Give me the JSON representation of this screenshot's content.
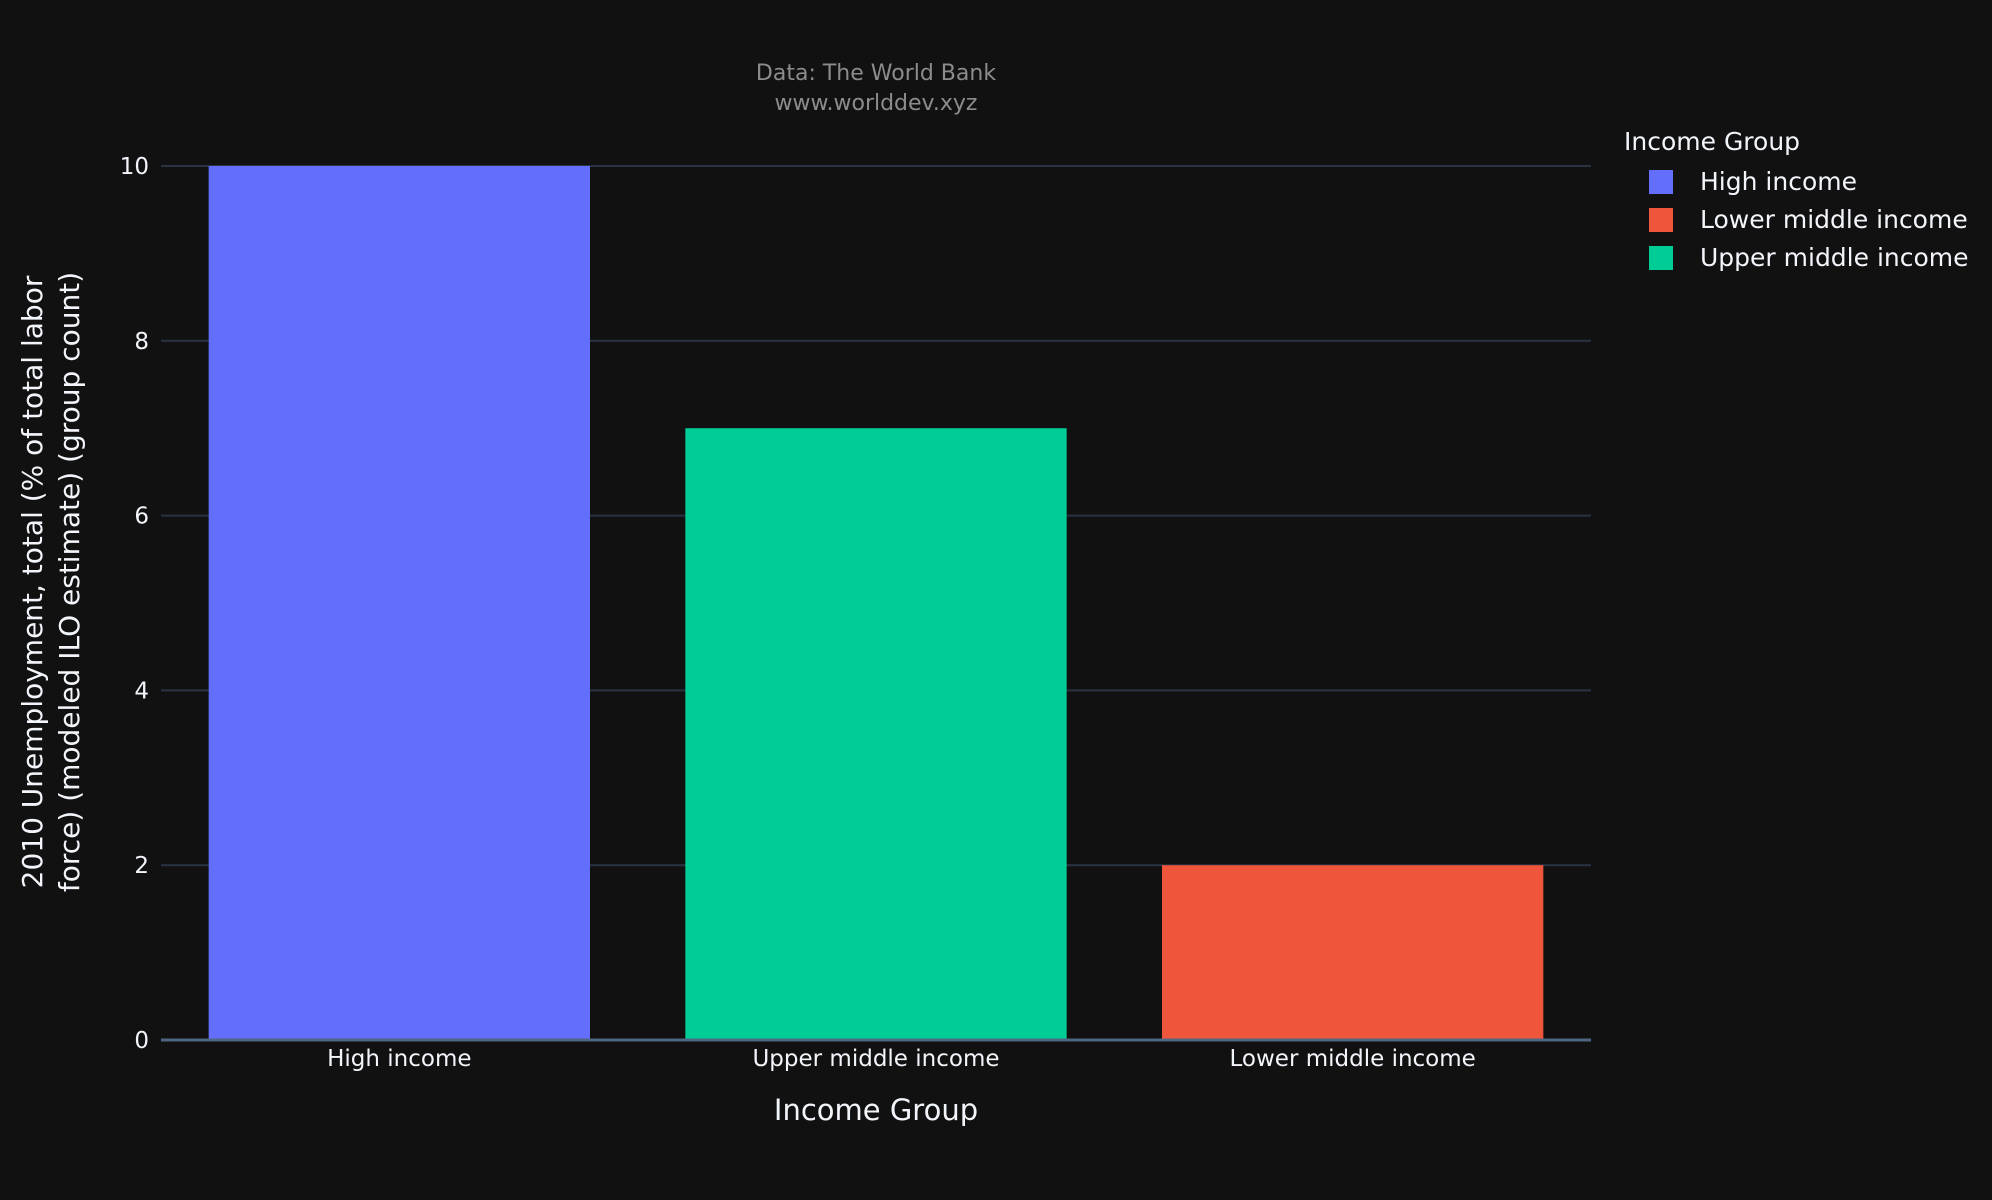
{
  "colors": {
    "background": "#111111",
    "grid": "#283442",
    "axis_text": "#f2f5fa",
    "subtitle_text": "#8c8c8c",
    "zero_line": "#506784"
  },
  "chart_data": {
    "type": "bar",
    "title_lines": [
      "Data: The World Bank",
      "www.worlddev.xyz"
    ],
    "xlabel": "Income Group",
    "ylabel_lines": [
      "2010 Unemployment, total (% of total labor",
      "force) (modeled ILO estimate) (group count)"
    ],
    "categories": [
      "High income",
      "Upper middle income",
      "Lower middle income"
    ],
    "series": [
      {
        "name": "High income",
        "category": "High income",
        "value": 10,
        "color": "#636efa"
      },
      {
        "name": "Upper middle income",
        "category": "Upper middle income",
        "value": 7,
        "color": "#00cc96"
      },
      {
        "name": "Lower middle income",
        "category": "Lower middle income",
        "value": 2,
        "color": "#ef553b"
      }
    ],
    "ylim": [
      0,
      10
    ],
    "yticks": [
      0,
      2,
      4,
      6,
      8,
      10
    ],
    "grid": true,
    "legend": {
      "title": "Income Group",
      "placement": "top-right",
      "entries": [
        {
          "name": "High income",
          "color": "#636efa"
        },
        {
          "name": "Lower middle income",
          "color": "#ef553b"
        },
        {
          "name": "Upper middle income",
          "color": "#00cc96"
        }
      ]
    }
  }
}
